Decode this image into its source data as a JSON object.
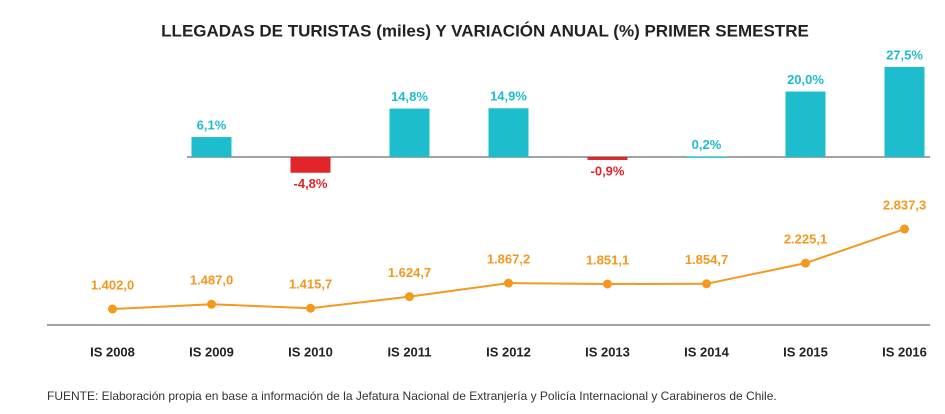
{
  "chart_data": {
    "type": "bar-line",
    "title": "LLEGADAS DE TURISTAS (miles) Y VARIACIÓN ANUAL (%) PRIMER SEMESTRE",
    "categories": [
      "IS 2008",
      "IS 2009",
      "IS 2010",
      "IS 2011",
      "IS 2012",
      "IS 2013",
      "IS 2014",
      "IS 2015",
      "IS 2016"
    ],
    "bars": {
      "values": [
        null,
        6.1,
        -4.8,
        14.8,
        14.9,
        -0.9,
        0.2,
        20.0,
        27.5
      ],
      "value_labels": [
        null,
        "6,1%",
        "-4,8%",
        "14,8%",
        "14,9%",
        "-0,9%",
        "0,2%",
        "20,0%",
        "27,5%"
      ],
      "color": "#1ebdcd",
      "negative_color": "#e3242b",
      "ylim": [
        -5,
        30
      ]
    },
    "line": {
      "values": [
        1402.0,
        1487.0,
        1415.7,
        1624.7,
        1867.2,
        1851.1,
        1854.7,
        2225.1,
        2837.3
      ],
      "value_labels": [
        "1.402,0",
        "1.487,0",
        "1.415,7",
        "1.624,7",
        "1.867,2",
        "1.851,1",
        "1.854,7",
        "2.225,1",
        "2.837,3"
      ],
      "color": "#f4981e",
      "ylim": [
        1000,
        3000
      ]
    },
    "source": "FUENTE: Elaboración propia en base a información de la Jefatura Nacional de Extranjería y Policía Internacional y Carabineros de Chile."
  }
}
